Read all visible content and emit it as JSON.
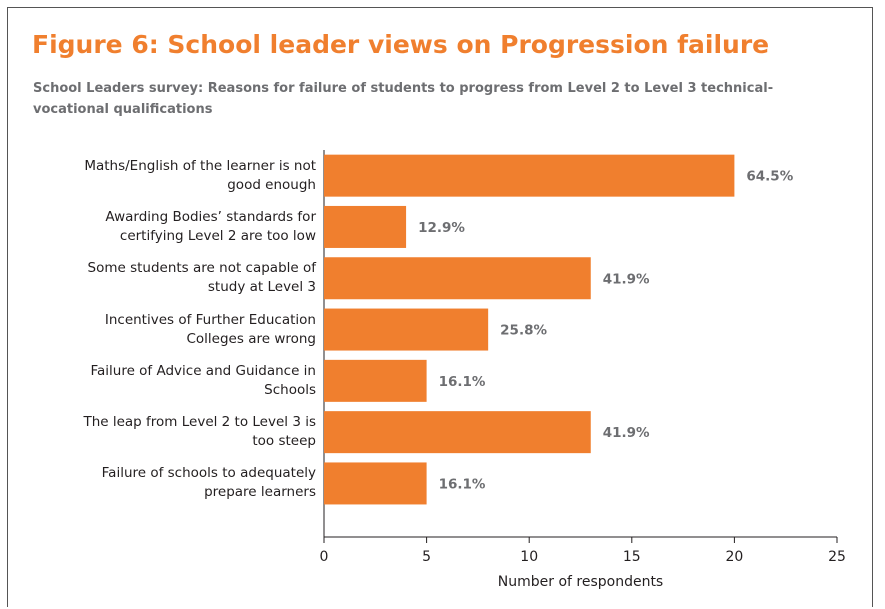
{
  "chart_data": {
    "type": "bar",
    "title": "Figure 6: School leader views on Progression failure",
    "subtitle": "School Leaders survey: Reasons for failure of students to progress from Level 2 to Level 3 technical-vocational qualifications",
    "categories": [
      "Maths/English of the learner is not good enough",
      "Awarding Bodies’ standards for certifying Level 2 are too low",
      "Some students are not capable of study at Level 3",
      "Incentives of Further Education Colleges are wrong",
      "Failure of Advice and Guidance in Schools",
      "The leap from Level 2 to Level 3 is too steep",
      "Failure of schools to adequately prepare learners"
    ],
    "values": [
      20,
      4,
      13,
      8,
      5,
      13,
      5
    ],
    "value_labels": [
      "64.5%",
      "12.9%",
      "41.9%",
      "25.8%",
      "16.1%",
      "41.9%",
      "16.1%"
    ],
    "color": "#f07f2e",
    "orientation": "horizontal",
    "xlabel": "Number of respondents",
    "xlim": [
      0,
      25
    ],
    "xticks": [
      0,
      5,
      10,
      15,
      20,
      25
    ],
    "grid": false
  }
}
